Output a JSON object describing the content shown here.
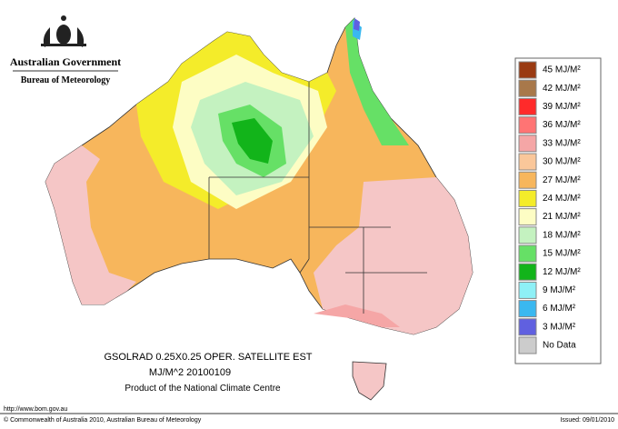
{
  "header": {
    "government": "Australian Government",
    "bureau": "Bureau of Meteorology"
  },
  "legend": {
    "items": [
      {
        "label": "45 MJ/M²",
        "color": "#9a3a12"
      },
      {
        "label": "42 MJ/M²",
        "color": "#a8784a"
      },
      {
        "label": "39 MJ/M²",
        "color": "#ff2a2a"
      },
      {
        "label": "36 MJ/M²",
        "color": "#ff7474"
      },
      {
        "label": "33 MJ/M²",
        "color": "#f5a6a6"
      },
      {
        "label": "30 MJ/M²",
        "color": "#fac79a"
      },
      {
        "label": "27 MJ/M²",
        "color": "#f7b65c"
      },
      {
        "label": "24 MJ/M²",
        "color": "#f4ec2a"
      },
      {
        "label": "21 MJ/M²",
        "color": "#fdfdc4"
      },
      {
        "label": "18 MJ/M²",
        "color": "#c4f2c0"
      },
      {
        "label": "15 MJ/M²",
        "color": "#66e066"
      },
      {
        "label": "12 MJ/M²",
        "color": "#12b41a"
      },
      {
        "label": "9 MJ/M²",
        "color": "#8ef0f6"
      },
      {
        "label": "6 MJ/M²",
        "color": "#3ab8f0"
      },
      {
        "label": "3 MJ/M²",
        "color": "#6060e0"
      },
      {
        "label": "No Data",
        "color": "#cccccc"
      }
    ]
  },
  "caption": {
    "line1": "GSOLRAD    0.25X0.25 OPER. SATELLITE EST",
    "line2": "MJ/M^2  20100109",
    "line3": "Product of the National Climate Centre"
  },
  "footer": {
    "url": "http://www.bom.gov.au",
    "copyright": "© Commonwealth of Australia 2010, Australian Bureau of Meteorology",
    "issued": "Issued: 09/01/2010"
  }
}
